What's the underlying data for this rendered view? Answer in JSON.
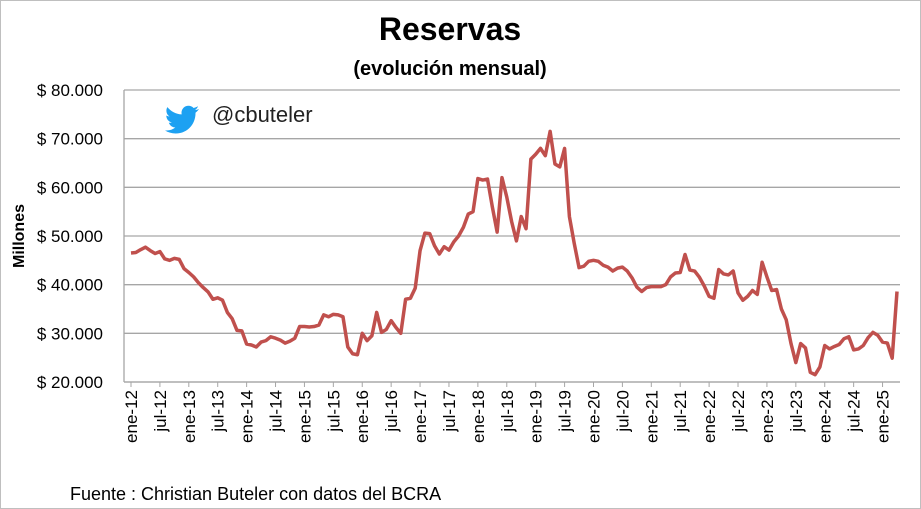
{
  "chart_data": {
    "type": "line",
    "title": "Reservas",
    "subtitle": "(evolución mensual)",
    "y_label": "Millones",
    "annotation": "@cbuteler",
    "source": "Fuente : Christian Buteler con datos del BCRA",
    "categories": [
      "ene-12",
      null,
      null,
      null,
      null,
      null,
      "jul-12",
      null,
      null,
      null,
      null,
      null,
      "ene-13",
      null,
      null,
      null,
      null,
      null,
      "jul-13",
      null,
      null,
      null,
      null,
      null,
      "ene-14",
      null,
      null,
      null,
      null,
      null,
      "jul-14",
      null,
      null,
      null,
      null,
      null,
      "ene-15",
      null,
      null,
      null,
      null,
      null,
      "jul-15",
      null,
      null,
      null,
      null,
      null,
      "ene-16",
      null,
      null,
      null,
      null,
      null,
      "jul-16",
      null,
      null,
      null,
      null,
      null,
      "ene-17",
      null,
      null,
      null,
      null,
      null,
      "jul-17",
      null,
      null,
      null,
      null,
      null,
      "ene-18",
      null,
      null,
      null,
      null,
      null,
      "jul-18",
      null,
      null,
      null,
      null,
      null,
      "ene-19",
      null,
      null,
      null,
      null,
      null,
      "jul-19",
      null,
      null,
      null,
      null,
      null,
      "ene-20",
      null,
      null,
      null,
      null,
      null,
      "jul-20",
      null,
      null,
      null,
      null,
      null,
      "ene-21",
      null,
      null,
      null,
      null,
      null,
      "jul-21",
      null,
      null,
      null,
      null,
      null,
      "ene-22",
      null,
      null,
      null,
      null,
      null,
      "jul-22",
      null,
      null,
      null,
      null,
      null,
      "ene-23",
      null,
      null,
      null,
      null,
      null,
      "jul-23",
      null,
      null,
      null,
      null,
      null,
      "ene-24",
      null,
      null,
      null,
      null,
      null,
      "jul-24",
      null,
      null,
      null,
      null,
      null,
      "ene-25",
      null,
      null,
      null
    ],
    "series": [
      {
        "name": "Reservas",
        "color": "#c0504d",
        "values": [
          46500,
          46600,
          47200,
          47700,
          47000,
          46400,
          46800,
          45300,
          45000,
          45400,
          45200,
          43300,
          42500,
          41600,
          40400,
          39400,
          38500,
          37000,
          37300,
          36800,
          34300,
          33000,
          30600,
          30500,
          27800,
          27600,
          27200,
          28200,
          28500,
          29300,
          29000,
          28600,
          28000,
          28400,
          29000,
          31400,
          31400,
          31300,
          31400,
          31700,
          33800,
          33400,
          33900,
          33800,
          33400,
          27200,
          25800,
          25600,
          30000,
          28500,
          29500,
          34300,
          30200,
          30800,
          32600,
          31200,
          30000,
          37000,
          37200,
          39300,
          47000,
          50600,
          50500,
          48000,
          46300,
          47800,
          47100,
          48800,
          50000,
          51800,
          54500,
          55000,
          61800,
          61500,
          61700,
          56000,
          50800,
          62000,
          58000,
          53000,
          49000,
          54000,
          51500,
          65800,
          66800,
          68000,
          66500,
          71500,
          64800,
          64200,
          68000,
          54000,
          48500,
          43500,
          43800,
          44800,
          45000,
          44800,
          44000,
          43600,
          42800,
          43400,
          43600,
          42800,
          41400,
          39500,
          38600,
          39400,
          39600,
          39600,
          39600,
          40000,
          41600,
          42400,
          42500,
          46200,
          43000,
          42800,
          41500,
          39700,
          37600,
          37200,
          43100,
          42200,
          42000,
          42800,
          38300,
          36800,
          37600,
          38800,
          38000,
          44600,
          41600,
          38800,
          39000,
          35000,
          32800,
          27900,
          24000,
          27900,
          27000,
          22000,
          21500,
          23100,
          27500,
          26800,
          27300,
          27700,
          28900,
          29300,
          26600,
          26800,
          27500,
          29100,
          30200,
          29600,
          28200,
          28000,
          24900,
          38600
        ]
      }
    ],
    "ylim": [
      20000,
      80000
    ],
    "yticks": [
      {
        "value": 20000,
        "label": "$ 20.000"
      },
      {
        "value": 30000,
        "label": "$ 30.000"
      },
      {
        "value": 40000,
        "label": "$ 40.000"
      },
      {
        "value": 50000,
        "label": "$ 50.000"
      },
      {
        "value": 60000,
        "label": "$ 60.000"
      },
      {
        "value": 70000,
        "label": "$ 70.000"
      },
      {
        "value": 80000,
        "label": "$ 80.000"
      }
    ],
    "grid": true
  }
}
